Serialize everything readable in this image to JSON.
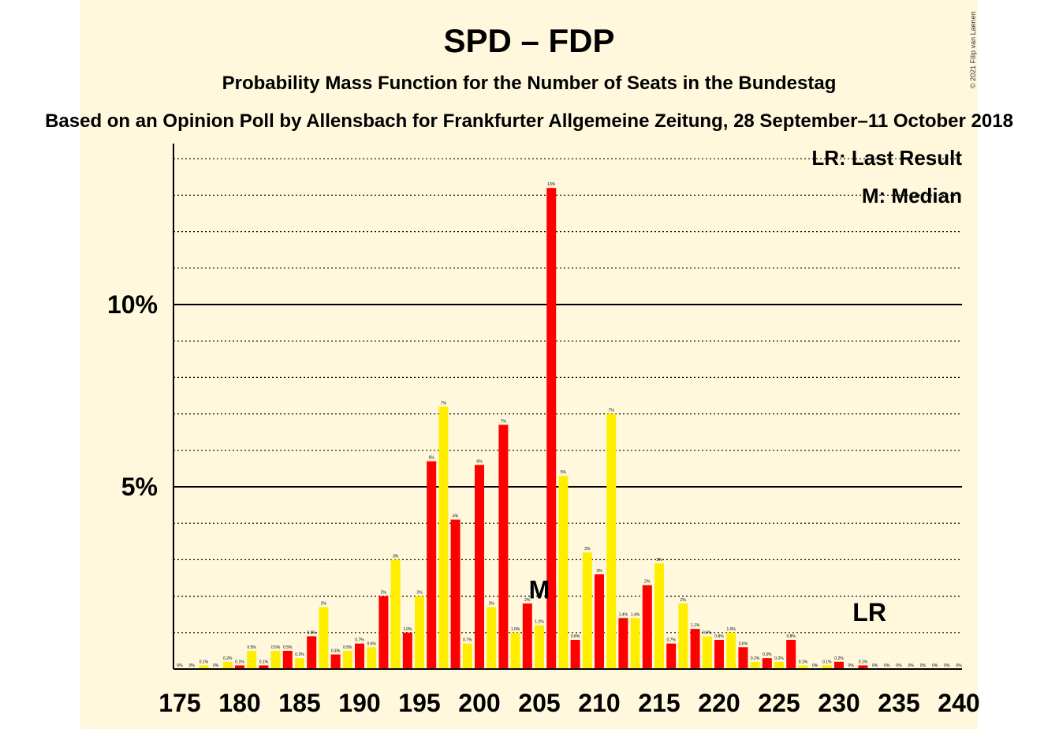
{
  "chart_data": {
    "type": "bar",
    "title": "SPD – FDP",
    "subtitle": "Probability Mass Function for the Number of Seats in the Bundestag",
    "subtitle2": "Based on an Opinion Poll by Allensbach for Frankfurter Allgemeine Zeitung, 28 September–11 October 2018",
    "copyright": "© 2021 Filip van Laenen",
    "legend": {
      "lr": "LR: Last Result",
      "m": "M: Median",
      "placement": "top-right"
    },
    "markers": {
      "median_label": "M",
      "median_seat": 205,
      "last_result_label": "LR",
      "last_result_seat": 233
    },
    "colors": {
      "odd": "#ffee00",
      "even": "#ff0000",
      "background": "#fff8dc"
    },
    "ylim": [
      0,
      14.4
    ],
    "ytick_labels": [
      {
        "value": 5,
        "label": "5%"
      },
      {
        "value": 10,
        "label": "10%"
      }
    ],
    "xtick_labels": [
      "175",
      "180",
      "185",
      "190",
      "195",
      "200",
      "205",
      "210",
      "215",
      "220",
      "225",
      "230",
      "235",
      "240"
    ],
    "x": [
      175,
      176,
      177,
      178,
      179,
      180,
      181,
      182,
      183,
      184,
      185,
      186,
      187,
      188,
      189,
      190,
      191,
      192,
      193,
      194,
      195,
      196,
      197,
      198,
      199,
      200,
      201,
      202,
      203,
      204,
      205,
      206,
      207,
      208,
      209,
      210,
      211,
      212,
      213,
      214,
      215,
      216,
      217,
      218,
      219,
      220,
      221,
      222,
      223,
      224,
      225,
      226,
      227,
      228,
      229,
      230,
      231,
      232,
      233,
      234,
      235,
      236,
      237,
      238,
      239,
      240
    ],
    "values": [
      0,
      0,
      0.1,
      0,
      0.2,
      0.1,
      0.5,
      0.1,
      0.5,
      0.5,
      0.3,
      0.9,
      1.7,
      0.4,
      0.5,
      0.7,
      0.6,
      2.0,
      3.0,
      1.0,
      2.0,
      5.7,
      7.2,
      4.1,
      0.7,
      5.6,
      1.7,
      6.7,
      1.0,
      1.8,
      1.2,
      13.2,
      5.3,
      0.8,
      3.2,
      2.6,
      7.0,
      1.4,
      1.4,
      2.3,
      2.9,
      0.7,
      1.8,
      1.1,
      0.9,
      0.8,
      1.0,
      0.6,
      0.2,
      0.3,
      0.2,
      0.8,
      0.1,
      0,
      0.1,
      0.2,
      0,
      0.1,
      0,
      0,
      0,
      0,
      0,
      0,
      0,
      0
    ],
    "labels": [
      "0%",
      "0%",
      "0.1%",
      "0%",
      "0.2%",
      "0.1%",
      "0.5%",
      "0.1%",
      "0.5%",
      "0.5%",
      "0.3%",
      "0.9%",
      "2%",
      "0.4%",
      "0.5%",
      "0.7%",
      "0.6%",
      "2%",
      "3%",
      "1.0%",
      "2%",
      "6%",
      "7%",
      "4%",
      "0.7%",
      "6%",
      "2%",
      "7%",
      "1.0%",
      "2%",
      "1.2%",
      "13%",
      "5%",
      "0.8%",
      "3%",
      "3%",
      "7%",
      "1.4%",
      "1.4%",
      "2%",
      "3%",
      "0.7%",
      "2%",
      "1.1%",
      "0.9%",
      "0.8%",
      "1.0%",
      "0.6%",
      "0.2%",
      "0.3%",
      "0.2%",
      "0.8%",
      "0.1%",
      "0%",
      "0.1%",
      "0.2%",
      "0%",
      "0.1%",
      "0%",
      "0%",
      "0%",
      "0%",
      "0%",
      "0%",
      "0%",
      "0%"
    ]
  }
}
